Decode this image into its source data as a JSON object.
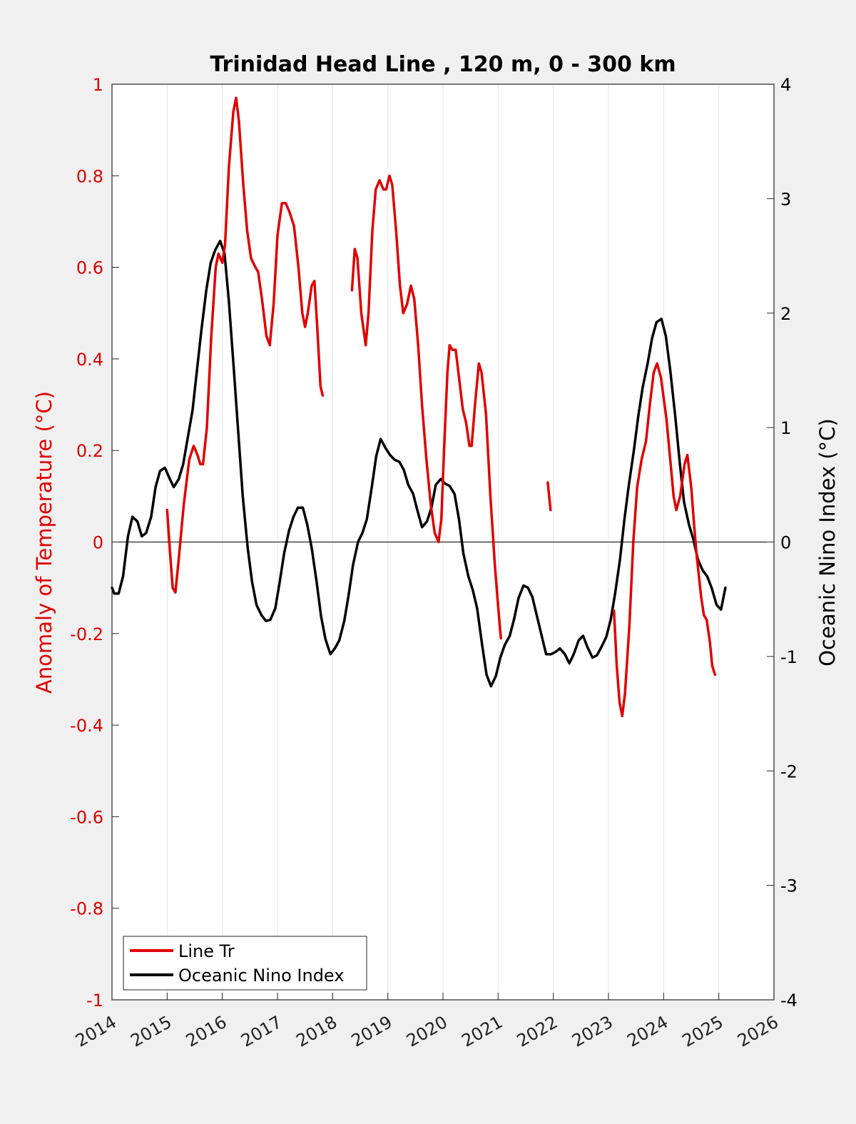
{
  "chart_data": {
    "type": "line",
    "title": "Trinidad Head Line , 120 m, 0 - 300 km",
    "ylabel_left": "Anomaly of Temperature (°C)",
    "ylabel_right": "Oceanic Nino Index (°C)",
    "xlabel": "",
    "xlim": [
      2014,
      2026
    ],
    "ylim_left": [
      -1,
      1
    ],
    "ylim_right": [
      -4,
      4
    ],
    "x_ticks": [
      "2014",
      "2015",
      "2016",
      "2017",
      "2018",
      "2019",
      "2020",
      "2021",
      "2022",
      "2023",
      "2024",
      "2025",
      "2026"
    ],
    "y_ticks_left": [
      "1",
      "0.8",
      "0.6",
      "0.4",
      "0.2",
      "0",
      "-0.2",
      "-0.4",
      "-0.6",
      "-0.8",
      "-1"
    ],
    "y_ticks_right": [
      "4",
      "3",
      "2",
      "1",
      "0",
      "-1",
      "-2",
      "-3",
      "-4"
    ],
    "grid": "vertical",
    "legend_position": "bottom-left",
    "colors": {
      "line_tr": "#e00000",
      "oni": "#000000",
      "axes_bg": "#ffffff",
      "figure_bg": "#f0f0f0"
    },
    "series": [
      {
        "name": "Line Tr",
        "axis": "left",
        "segments": [
          [
            [
              2015.0,
              0.07
            ],
            [
              2015.05,
              -0.02
            ],
            [
              2015.1,
              -0.1
            ],
            [
              2015.15,
              -0.11
            ],
            [
              2015.2,
              -0.05
            ],
            [
              2015.3,
              0.08
            ],
            [
              2015.4,
              0.18
            ],
            [
              2015.48,
              0.21
            ],
            [
              2015.55,
              0.19
            ],
            [
              2015.6,
              0.17
            ],
            [
              2015.65,
              0.17
            ],
            [
              2015.72,
              0.25
            ],
            [
              2015.8,
              0.45
            ],
            [
              2015.88,
              0.6
            ],
            [
              2015.93,
              0.63
            ],
            [
              2016.0,
              0.61
            ],
            [
              2016.05,
              0.65
            ],
            [
              2016.12,
              0.82
            ],
            [
              2016.2,
              0.94
            ],
            [
              2016.25,
              0.97
            ],
            [
              2016.3,
              0.92
            ],
            [
              2016.38,
              0.78
            ],
            [
              2016.45,
              0.68
            ],
            [
              2016.52,
              0.62
            ],
            [
              2016.6,
              0.6
            ],
            [
              2016.65,
              0.59
            ],
            [
              2016.72,
              0.53
            ],
            [
              2016.8,
              0.45
            ],
            [
              2016.86,
              0.43
            ],
            [
              2016.93,
              0.52
            ],
            [
              2017.0,
              0.67
            ],
            [
              2017.08,
              0.74
            ],
            [
              2017.15,
              0.74
            ],
            [
              2017.22,
              0.72
            ],
            [
              2017.3,
              0.69
            ],
            [
              2017.38,
              0.6
            ],
            [
              2017.45,
              0.5
            ],
            [
              2017.5,
              0.47
            ],
            [
              2017.55,
              0.5
            ],
            [
              2017.62,
              0.56
            ],
            [
              2017.67,
              0.57
            ],
            [
              2017.72,
              0.47
            ],
            [
              2017.78,
              0.34
            ],
            [
              2017.82,
              0.32
            ]
          ],
          [
            [
              2018.35,
              0.55
            ],
            [
              2018.4,
              0.64
            ],
            [
              2018.45,
              0.62
            ],
            [
              2018.52,
              0.5
            ],
            [
              2018.6,
              0.43
            ],
            [
              2018.65,
              0.5
            ],
            [
              2018.72,
              0.68
            ],
            [
              2018.78,
              0.77
            ],
            [
              2018.85,
              0.79
            ],
            [
              2018.92,
              0.77
            ],
            [
              2018.97,
              0.77
            ],
            [
              2019.03,
              0.8
            ],
            [
              2019.08,
              0.78
            ],
            [
              2019.15,
              0.68
            ],
            [
              2019.22,
              0.56
            ],
            [
              2019.28,
              0.5
            ],
            [
              2019.35,
              0.52
            ],
            [
              2019.42,
              0.56
            ],
            [
              2019.48,
              0.53
            ],
            [
              2019.55,
              0.43
            ],
            [
              2019.62,
              0.3
            ],
            [
              2019.7,
              0.18
            ],
            [
              2019.78,
              0.08
            ],
            [
              2019.85,
              0.02
            ],
            [
              2019.92,
              0.0
            ],
            [
              2019.97,
              0.05
            ],
            [
              2020.02,
              0.2
            ],
            [
              2020.08,
              0.37
            ],
            [
              2020.12,
              0.43
            ],
            [
              2020.17,
              0.42
            ],
            [
              2020.23,
              0.42
            ],
            [
              2020.3,
              0.35
            ],
            [
              2020.36,
              0.29
            ],
            [
              2020.42,
              0.26
            ],
            [
              2020.48,
              0.21
            ],
            [
              2020.52,
              0.21
            ],
            [
              2020.58,
              0.3
            ],
            [
              2020.65,
              0.39
            ],
            [
              2020.7,
              0.37
            ],
            [
              2020.78,
              0.28
            ],
            [
              2020.86,
              0.1
            ],
            [
              2020.94,
              -0.05
            ],
            [
              2021.0,
              -0.14
            ],
            [
              2021.05,
              -0.21
            ]
          ],
          [
            [
              2021.9,
              0.13
            ],
            [
              2021.95,
              0.07
            ]
          ],
          [
            [
              2023.1,
              -0.15
            ],
            [
              2023.15,
              -0.27
            ],
            [
              2023.2,
              -0.35
            ],
            [
              2023.25,
              -0.38
            ],
            [
              2023.3,
              -0.33
            ],
            [
              2023.38,
              -0.18
            ],
            [
              2023.45,
              0.0
            ],
            [
              2023.52,
              0.12
            ],
            [
              2023.6,
              0.18
            ],
            [
              2023.68,
              0.22
            ],
            [
              2023.75,
              0.3
            ],
            [
              2023.82,
              0.37
            ],
            [
              2023.88,
              0.39
            ],
            [
              2023.95,
              0.36
            ],
            [
              2024.05,
              0.27
            ],
            [
              2024.12,
              0.18
            ],
            [
              2024.18,
              0.1
            ],
            [
              2024.23,
              0.07
            ],
            [
              2024.3,
              0.1
            ],
            [
              2024.38,
              0.17
            ],
            [
              2024.43,
              0.19
            ],
            [
              2024.5,
              0.12
            ],
            [
              2024.55,
              0.04
            ],
            [
              2024.6,
              -0.03
            ],
            [
              2024.68,
              -0.12
            ],
            [
              2024.73,
              -0.16
            ],
            [
              2024.78,
              -0.17
            ],
            [
              2024.84,
              -0.22
            ],
            [
              2024.88,
              -0.27
            ],
            [
              2024.93,
              -0.29
            ]
          ]
        ]
      },
      {
        "name": "Oceanic Nino Index",
        "axis": "right",
        "points": [
          [
            2014.0,
            -0.4
          ],
          [
            2014.04,
            -0.45
          ],
          [
            2014.12,
            -0.45
          ],
          [
            2014.2,
            -0.3
          ],
          [
            2014.29,
            0.05
          ],
          [
            2014.37,
            0.22
          ],
          [
            2014.46,
            0.18
          ],
          [
            2014.54,
            0.05
          ],
          [
            2014.62,
            0.08
          ],
          [
            2014.71,
            0.22
          ],
          [
            2014.79,
            0.48
          ],
          [
            2014.87,
            0.62
          ],
          [
            2014.96,
            0.65
          ],
          [
            2015.04,
            0.56
          ],
          [
            2015.12,
            0.48
          ],
          [
            2015.21,
            0.55
          ],
          [
            2015.29,
            0.68
          ],
          [
            2015.37,
            0.9
          ],
          [
            2015.46,
            1.15
          ],
          [
            2015.54,
            1.5
          ],
          [
            2015.62,
            1.85
          ],
          [
            2015.71,
            2.2
          ],
          [
            2015.79,
            2.44
          ],
          [
            2015.87,
            2.55
          ],
          [
            2015.96,
            2.63
          ],
          [
            2016.04,
            2.52
          ],
          [
            2016.12,
            2.1
          ],
          [
            2016.21,
            1.5
          ],
          [
            2016.29,
            0.95
          ],
          [
            2016.37,
            0.4
          ],
          [
            2016.46,
            -0.05
          ],
          [
            2016.54,
            -0.35
          ],
          [
            2016.62,
            -0.55
          ],
          [
            2016.71,
            -0.64
          ],
          [
            2016.79,
            -0.69
          ],
          [
            2016.87,
            -0.68
          ],
          [
            2016.96,
            -0.58
          ],
          [
            2017.04,
            -0.35
          ],
          [
            2017.12,
            -0.1
          ],
          [
            2017.21,
            0.1
          ],
          [
            2017.29,
            0.22
          ],
          [
            2017.37,
            0.3
          ],
          [
            2017.46,
            0.3
          ],
          [
            2017.54,
            0.15
          ],
          [
            2017.62,
            -0.05
          ],
          [
            2017.71,
            -0.35
          ],
          [
            2017.79,
            -0.65
          ],
          [
            2017.87,
            -0.85
          ],
          [
            2017.96,
            -0.98
          ],
          [
            2018.04,
            -0.93
          ],
          [
            2018.12,
            -0.86
          ],
          [
            2018.21,
            -0.69
          ],
          [
            2018.29,
            -0.46
          ],
          [
            2018.37,
            -0.2
          ],
          [
            2018.46,
            0.0
          ],
          [
            2018.54,
            0.08
          ],
          [
            2018.62,
            0.2
          ],
          [
            2018.71,
            0.48
          ],
          [
            2018.79,
            0.75
          ],
          [
            2018.87,
            0.9
          ],
          [
            2018.96,
            0.82
          ],
          [
            2019.04,
            0.76
          ],
          [
            2019.12,
            0.72
          ],
          [
            2019.21,
            0.7
          ],
          [
            2019.29,
            0.63
          ],
          [
            2019.37,
            0.5
          ],
          [
            2019.46,
            0.42
          ],
          [
            2019.54,
            0.27
          ],
          [
            2019.62,
            0.13
          ],
          [
            2019.71,
            0.18
          ],
          [
            2019.79,
            0.3
          ],
          [
            2019.87,
            0.5
          ],
          [
            2019.96,
            0.55
          ],
          [
            2020.04,
            0.51
          ],
          [
            2020.12,
            0.49
          ],
          [
            2020.21,
            0.42
          ],
          [
            2020.29,
            0.2
          ],
          [
            2020.37,
            -0.1
          ],
          [
            2020.46,
            -0.3
          ],
          [
            2020.54,
            -0.42
          ],
          [
            2020.62,
            -0.58
          ],
          [
            2020.71,
            -0.9
          ],
          [
            2020.79,
            -1.16
          ],
          [
            2020.87,
            -1.26
          ],
          [
            2020.96,
            -1.17
          ],
          [
            2021.04,
            -1.01
          ],
          [
            2021.12,
            -0.9
          ],
          [
            2021.21,
            -0.82
          ],
          [
            2021.29,
            -0.67
          ],
          [
            2021.37,
            -0.49
          ],
          [
            2021.46,
            -0.38
          ],
          [
            2021.54,
            -0.4
          ],
          [
            2021.62,
            -0.48
          ],
          [
            2021.71,
            -0.66
          ],
          [
            2021.79,
            -0.82
          ],
          [
            2021.87,
            -0.98
          ],
          [
            2021.96,
            -0.98
          ],
          [
            2022.04,
            -0.96
          ],
          [
            2022.12,
            -0.93
          ],
          [
            2022.21,
            -0.98
          ],
          [
            2022.29,
            -1.06
          ],
          [
            2022.37,
            -0.98
          ],
          [
            2022.46,
            -0.86
          ],
          [
            2022.54,
            -0.82
          ],
          [
            2022.62,
            -0.92
          ],
          [
            2022.71,
            -1.01
          ],
          [
            2022.79,
            -0.99
          ],
          [
            2022.87,
            -0.92
          ],
          [
            2022.96,
            -0.83
          ],
          [
            2023.04,
            -0.68
          ],
          [
            2023.12,
            -0.45
          ],
          [
            2023.21,
            -0.15
          ],
          [
            2023.29,
            0.2
          ],
          [
            2023.37,
            0.5
          ],
          [
            2023.46,
            0.8
          ],
          [
            2023.54,
            1.1
          ],
          [
            2023.62,
            1.35
          ],
          [
            2023.71,
            1.56
          ],
          [
            2023.79,
            1.78
          ],
          [
            2023.87,
            1.92
          ],
          [
            2023.96,
            1.95
          ],
          [
            2024.04,
            1.8
          ],
          [
            2024.12,
            1.5
          ],
          [
            2024.21,
            1.1
          ],
          [
            2024.29,
            0.7
          ],
          [
            2024.37,
            0.35
          ],
          [
            2024.46,
            0.15
          ],
          [
            2024.54,
            0.02
          ],
          [
            2024.62,
            -0.15
          ],
          [
            2024.71,
            -0.25
          ],
          [
            2024.79,
            -0.3
          ],
          [
            2024.87,
            -0.4
          ],
          [
            2024.96,
            -0.55
          ],
          [
            2025.04,
            -0.59
          ],
          [
            2025.12,
            -0.4
          ]
        ]
      }
    ],
    "legend": [
      "Line Tr",
      "Oceanic Nino Index"
    ]
  }
}
